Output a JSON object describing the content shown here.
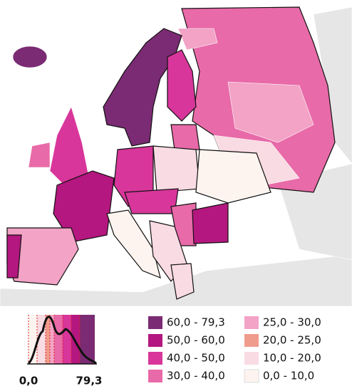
{
  "legend": {
    "items": [
      {
        "label": "60,0 - 79,3",
        "color": "#7a2b73"
      },
      {
        "label": "50,0 - 60,0",
        "color": "#b4177f"
      },
      {
        "label": "40,0 - 50,0",
        "color": "#d8369a"
      },
      {
        "label": "30,0 - 40,0",
        "color": "#e86aa8"
      },
      {
        "label": "25,0 - 30,0",
        "color": "#f2a3c6"
      },
      {
        "label": "20,0 - 25,0",
        "color": "#f09c8c"
      },
      {
        "label": "10,0 - 20,0",
        "color": "#f9dbe3"
      },
      {
        "label": "0,0 - 10,0",
        "color": "#fdf4ef"
      }
    ]
  },
  "histogram": {
    "axis_labels": [
      "0,0",
      "79,3"
    ]
  }
}
